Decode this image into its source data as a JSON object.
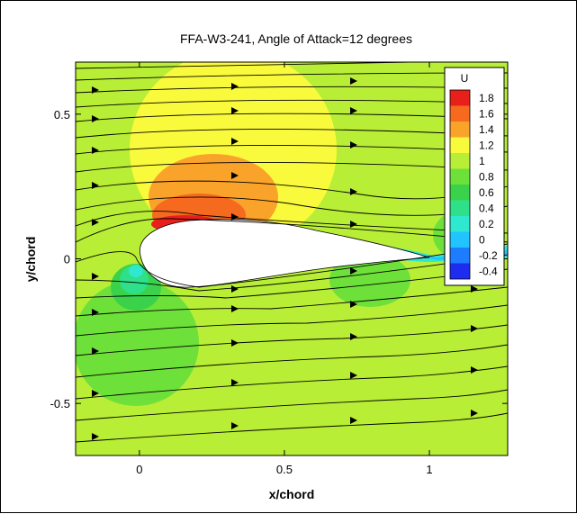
{
  "chart_data": {
    "type": "contour",
    "title": "FFA-W3-241, Angle of Attack=12 degrees",
    "xlabel": "x/chord",
    "ylabel": "y/chord",
    "xlim": [
      -0.22,
      1.27
    ],
    "ylim": [
      -0.68,
      0.68
    ],
    "x_ticks": [
      {
        "value": 0,
        "label": "0"
      },
      {
        "value": 0.5,
        "label": "0.5"
      },
      {
        "value": 1,
        "label": "1"
      }
    ],
    "y_ticks": [
      {
        "value": 0.5,
        "label": "0.5"
      },
      {
        "value": 0,
        "label": "0"
      },
      {
        "value": -0.5,
        "label": "-0.5"
      }
    ],
    "legend": {
      "title": "U",
      "position": "top-right",
      "levels": [
        {
          "label": "1.8",
          "color": "#e8201c"
        },
        {
          "label": "1.6",
          "color": "#f56a1e"
        },
        {
          "label": "1.4",
          "color": "#f9a32b"
        },
        {
          "label": "1.2",
          "color": "#fafa3c"
        },
        {
          "label": "1",
          "color": "#b8ee36"
        },
        {
          "label": "0.8",
          "color": "#6ee03a"
        },
        {
          "label": "0.6",
          "color": "#3ad24a"
        },
        {
          "label": "0.4",
          "color": "#2ee08a"
        },
        {
          "label": "0.2",
          "color": "#2ee8d0"
        },
        {
          "label": "0",
          "color": "#22c4ff"
        },
        {
          "label": "-0.2",
          "color": "#1e7cff"
        },
        {
          "label": "-0.4",
          "color": "#1e2cf0"
        }
      ]
    },
    "streamlines": true,
    "airfoil": {
      "leading_edge_x": 0,
      "trailing_edge_x": 1.0
    }
  }
}
